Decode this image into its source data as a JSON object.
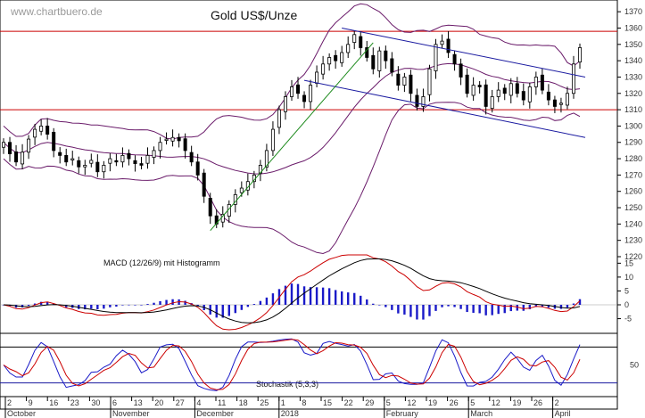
{
  "chart_data": [
    {
      "type": "candlestick",
      "title": "Gold US$/Unze",
      "watermark": "www.chartbuero.de",
      "ylim": [
        1220,
        1375
      ],
      "y_ticks": [
        1370,
        1360,
        1350,
        1340,
        1330,
        1320,
        1310,
        1300,
        1290,
        1280,
        1270,
        1260,
        1250,
        1240,
        1230,
        1220
      ],
      "x_day_ticks": [
        "2",
        "9",
        "16",
        "23",
        "30",
        "6",
        "13",
        "20",
        "27",
        "4",
        "11",
        "18",
        "25",
        "1",
        "8",
        "15",
        "22",
        "29",
        "5",
        "12",
        "19",
        "26",
        "5",
        "12",
        "19",
        "26",
        "2"
      ],
      "x_month_labels": [
        "October",
        "November",
        "December",
        "2018",
        "February",
        "March",
        "April"
      ],
      "horizontal_lines": [
        1358,
        1310
      ],
      "ohlc_close": [
        1290,
        1283,
        1278,
        1284,
        1292,
        1298,
        1300,
        1295,
        1285,
        1282,
        1278,
        1280,
        1275,
        1276,
        1279,
        1272,
        1276,
        1280,
        1278,
        1282,
        1280,
        1277,
        1276,
        1282,
        1285,
        1290,
        1292,
        1293,
        1291,
        1285,
        1278,
        1270,
        1257,
        1245,
        1240,
        1246,
        1252,
        1258,
        1262,
        1266,
        1270,
        1276,
        1285,
        1298,
        1310,
        1318,
        1324,
        1320,
        1315,
        1325,
        1333,
        1338,
        1342,
        1340,
        1345,
        1350,
        1356,
        1348,
        1342,
        1335,
        1346,
        1340,
        1333,
        1325,
        1330,
        1320,
        1312,
        1318,
        1335,
        1350,
        1352,
        1345,
        1338,
        1330,
        1320,
        1325,
        1324,
        1312,
        1318,
        1322,
        1320,
        1326,
        1320,
        1316,
        1324,
        1330,
        1322,
        1316,
        1312,
        1314,
        1320,
        1338,
        1348
      ],
      "resistance_channel": {
        "start": [
          1360,
          1343
        ],
        "end": [
          1345,
          1330
        ]
      },
      "support_channel": {
        "start": [
          1328,
          1325
        ],
        "end": [
          1300,
          1293
        ]
      },
      "uptrend_line": {
        "start": 1236,
        "end": 1351
      }
    },
    {
      "type": "line",
      "title": "MACD (12/26/9) mit Histogramm",
      "ylim": [
        -9,
        18
      ],
      "y_ticks": [
        15,
        10,
        5,
        0,
        -5
      ]
    },
    {
      "type": "line",
      "title": "Stochastik (5,3,3)",
      "y_ticks": [
        50
      ],
      "reference_lines": [
        80,
        20
      ]
    }
  ]
}
